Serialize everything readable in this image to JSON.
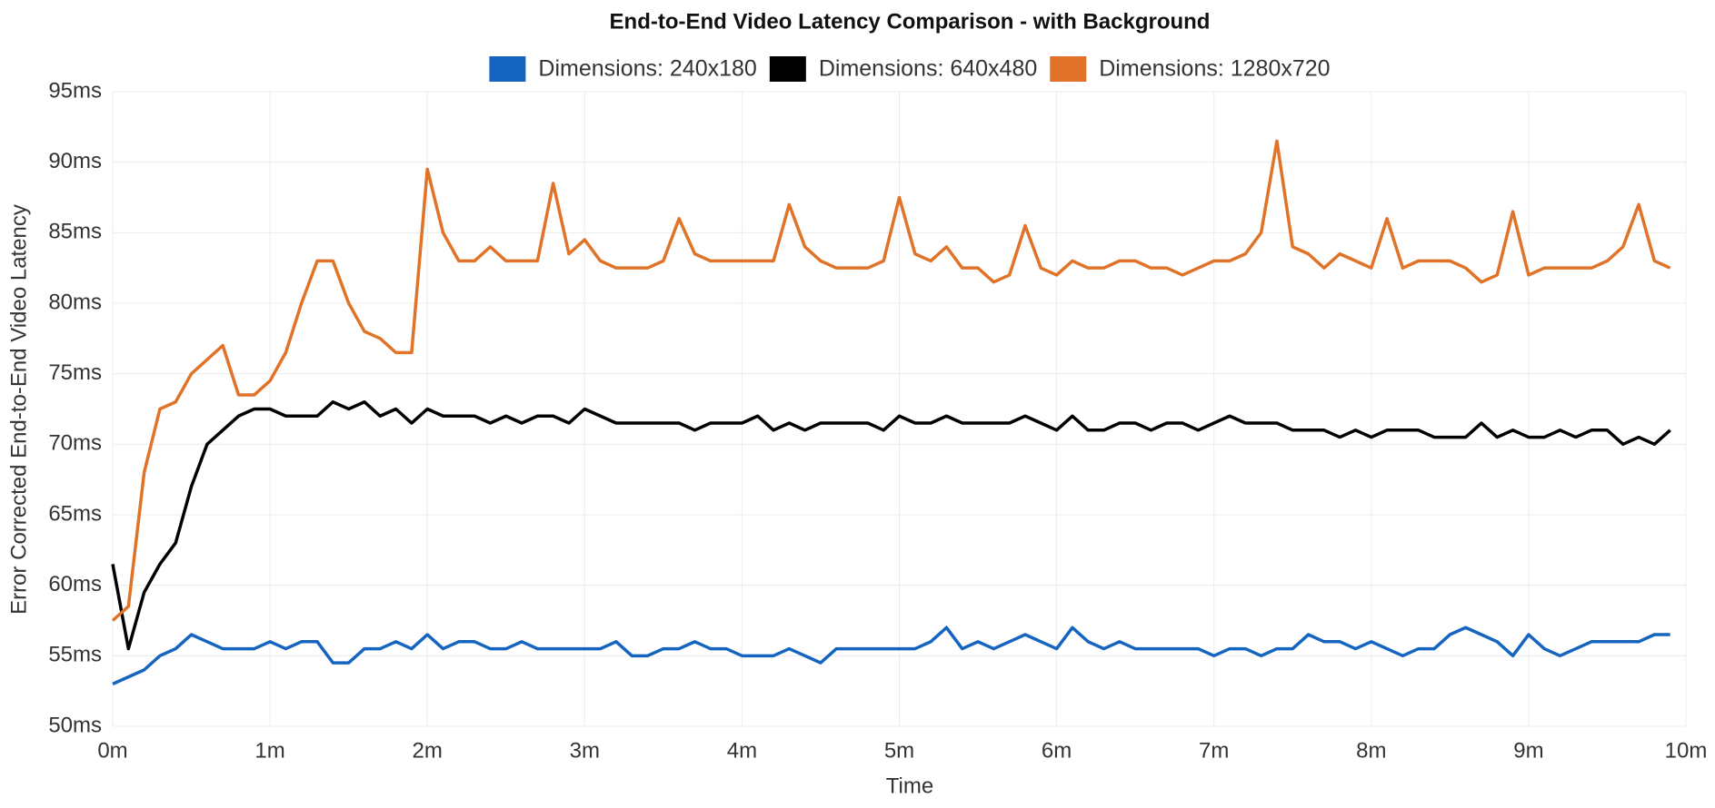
{
  "chart_data": {
    "type": "line",
    "title": "End-to-End Video Latency Comparison - with Background",
    "x_label": "Time",
    "y_label": "Error Corrected End-to-End Video Latency",
    "x": [
      0,
      0.1,
      0.2,
      0.3,
      0.4,
      0.5,
      0.6,
      0.7,
      0.8,
      0.9,
      1,
      1.1,
      1.2,
      1.3,
      1.4,
      1.5,
      1.6,
      1.7,
      1.8,
      1.9,
      2,
      2.1,
      2.2,
      2.3,
      2.4,
      2.5,
      2.6,
      2.7,
      2.8,
      2.9,
      3,
      3.1,
      3.2,
      3.3,
      3.4,
      3.5,
      3.6,
      3.7,
      3.8,
      3.9,
      4,
      4.1,
      4.2,
      4.3,
      4.4,
      4.5,
      4.6,
      4.7,
      4.8,
      4.9,
      5,
      5.1,
      5.2,
      5.3,
      5.4,
      5.5,
      5.6,
      5.7,
      5.8,
      5.9,
      6,
      6.1,
      6.2,
      6.3,
      6.4,
      6.5,
      6.6,
      6.7,
      6.8,
      6.9,
      7,
      7.1,
      7.2,
      7.3,
      7.4,
      7.5,
      7.6,
      7.7,
      7.8,
      7.9,
      8,
      8.1,
      8.2,
      8.3,
      8.4,
      8.5,
      8.6,
      8.7,
      8.8,
      8.9,
      9,
      9.1,
      9.2,
      9.3,
      9.4,
      9.5,
      9.6,
      9.7,
      9.8,
      9.9
    ],
    "series": [
      {
        "name": "Dimensions: 240x180",
        "color": "#1565c0",
        "values": [
          53,
          53.5,
          54,
          55,
          55.5,
          56.5,
          56,
          55.5,
          55.5,
          55.5,
          56,
          55.5,
          56,
          56,
          54.5,
          54.5,
          55.5,
          55.5,
          56,
          55.5,
          56.5,
          55.5,
          56,
          56,
          55.5,
          55.5,
          56,
          55.5,
          55.5,
          55.5,
          55.5,
          55.5,
          56,
          55,
          55,
          55.5,
          55.5,
          56,
          55.5,
          55.5,
          55,
          55,
          55,
          55.5,
          55,
          54.5,
          55.5,
          55.5,
          55.5,
          55.5,
          55.5,
          55.5,
          56,
          57,
          55.5,
          56,
          55.5,
          56,
          56.5,
          56,
          55.5,
          57,
          56,
          55.5,
          56,
          55.5,
          55.5,
          55.5,
          55.5,
          55.5,
          55,
          55.5,
          55.5,
          55,
          55.5,
          55.5,
          56.5,
          56,
          56,
          55.5,
          56,
          55.5,
          55,
          55.5,
          55.5,
          56.5,
          57,
          56.5,
          56,
          55,
          56.5,
          55.5,
          55,
          55.5,
          56,
          56,
          56,
          56,
          56.5,
          56.5
        ]
      },
      {
        "name": "Dimensions: 640x480",
        "color": "#000000",
        "values": [
          61.5,
          55.5,
          59.5,
          61.5,
          63,
          67,
          70,
          71,
          72,
          72.5,
          72.5,
          72,
          72,
          72,
          73,
          72.5,
          73,
          72,
          72.5,
          71.5,
          72.5,
          72,
          72,
          72,
          71.5,
          72,
          71.5,
          72,
          72,
          71.5,
          72.5,
          72,
          71.5,
          71.5,
          71.5,
          71.5,
          71.5,
          71,
          71.5,
          71.5,
          71.5,
          72,
          71,
          71.5,
          71,
          71.5,
          71.5,
          71.5,
          71.5,
          71,
          72,
          71.5,
          71.5,
          72,
          71.5,
          71.5,
          71.5,
          71.5,
          72,
          71.5,
          71,
          72,
          71,
          71,
          71.5,
          71.5,
          71,
          71.5,
          71.5,
          71,
          71.5,
          72,
          71.5,
          71.5,
          71.5,
          71,
          71,
          71,
          70.5,
          71,
          70.5,
          71,
          71,
          71,
          70.5,
          70.5,
          70.5,
          71.5,
          70.5,
          71,
          70.5,
          70.5,
          71,
          70.5,
          71,
          71,
          70,
          70.5,
          70,
          71
        ]
      },
      {
        "name": "Dimensions: 1280x720",
        "color": "#e07328",
        "values": [
          57.5,
          58.5,
          68,
          72.5,
          73,
          75,
          76,
          77,
          73.5,
          73.5,
          74.5,
          76.5,
          80,
          83,
          83,
          80,
          78,
          77.5,
          76.5,
          76.5,
          89.5,
          85,
          83,
          83,
          84,
          83,
          83,
          83,
          88.5,
          83.5,
          84.5,
          83,
          82.5,
          82.5,
          82.5,
          83,
          86,
          83.5,
          83,
          83,
          83,
          83,
          83,
          87,
          84,
          83,
          82.5,
          82.5,
          82.5,
          83,
          87.5,
          83.5,
          83,
          84,
          82.5,
          82.5,
          81.5,
          82,
          85.5,
          82.5,
          82,
          83,
          82.5,
          82.5,
          83,
          83,
          82.5,
          82.5,
          82,
          82.5,
          83,
          83,
          83.5,
          85,
          91.5,
          84,
          83.5,
          82.5,
          83.5,
          83,
          82.5,
          86,
          82.5,
          83,
          83,
          83,
          82.5,
          81.5,
          82,
          86.5,
          82,
          82.5,
          82.5,
          82.5,
          82.5,
          83,
          84,
          87,
          83,
          82.5
        ]
      }
    ],
    "xlim": [
      0,
      10
    ],
    "xticks": [
      {
        "value": 0,
        "label": "0m"
      },
      {
        "value": 1,
        "label": "1m"
      },
      {
        "value": 2,
        "label": "2m"
      },
      {
        "value": 3,
        "label": "3m"
      },
      {
        "value": 4,
        "label": "4m"
      },
      {
        "value": 5,
        "label": "5m"
      },
      {
        "value": 6,
        "label": "6m"
      },
      {
        "value": 7,
        "label": "7m"
      },
      {
        "value": 8,
        "label": "8m"
      },
      {
        "value": 9,
        "label": "9m"
      },
      {
        "value": 10,
        "label": "10m"
      }
    ],
    "ylim": [
      50,
      95
    ],
    "yticks": [
      {
        "value": 50,
        "label": "50ms"
      },
      {
        "value": 55,
        "label": "55ms"
      },
      {
        "value": 60,
        "label": "60ms"
      },
      {
        "value": 65,
        "label": "65ms"
      },
      {
        "value": 70,
        "label": "70ms"
      },
      {
        "value": 75,
        "label": "75ms"
      },
      {
        "value": 80,
        "label": "80ms"
      },
      {
        "value": 85,
        "label": "85ms"
      },
      {
        "value": 90,
        "label": "90ms"
      },
      {
        "value": 95,
        "label": "95ms"
      }
    ],
    "grid": true
  }
}
